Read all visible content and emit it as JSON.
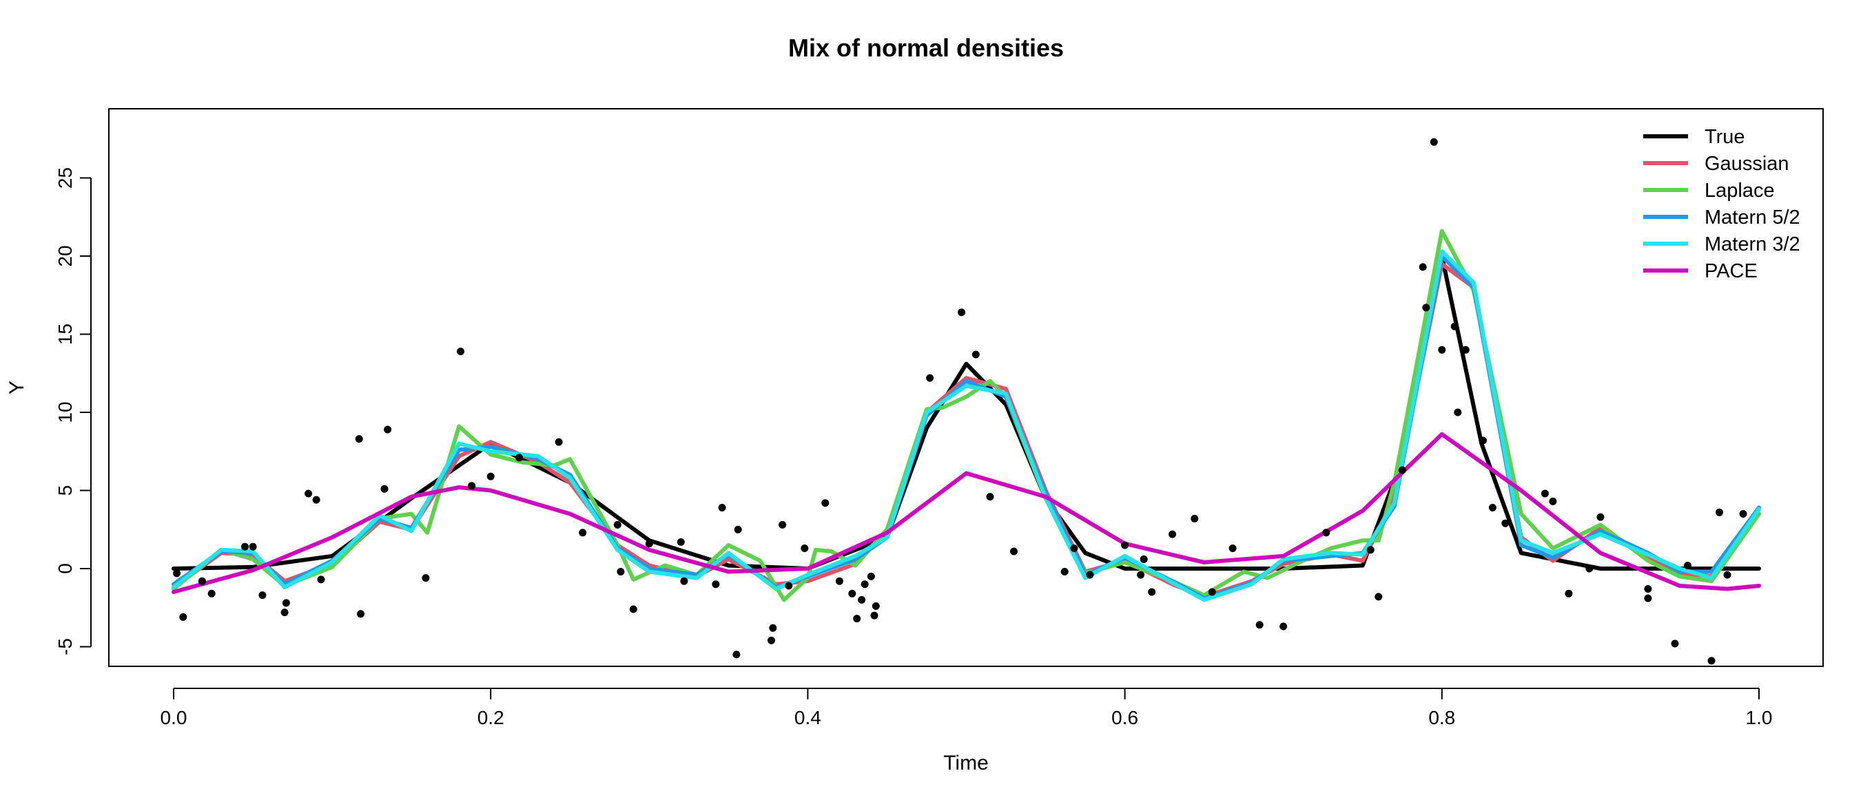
{
  "chart_data": {
    "type": "line",
    "title": "Mix of normal densities",
    "xlabel": "Time",
    "ylabel": "Y",
    "xlim": [
      0.0,
      1.0
    ],
    "ylim": [
      -5,
      27
    ],
    "x_ticks": [
      "0.0",
      "0.2",
      "0.4",
      "0.6",
      "0.8",
      "1.0"
    ],
    "y_ticks": [
      "-5",
      "0",
      "5",
      "10",
      "15",
      "20",
      "25"
    ],
    "legend_position": "top-right",
    "series": [
      {
        "name": "True",
        "color": "#000000",
        "x": [
          0,
          0.05,
          0.1,
          0.15,
          0.2,
          0.25,
          0.3,
          0.35,
          0.4,
          0.45,
          0.475,
          0.5,
          0.525,
          0.55,
          0.575,
          0.6,
          0.65,
          0.7,
          0.75,
          0.775,
          0.8,
          0.825,
          0.85,
          0.9,
          1.0
        ],
        "y": [
          0,
          0.1,
          0.8,
          4.5,
          8.0,
          5.5,
          1.8,
          0.2,
          0,
          2.0,
          9.0,
          13.1,
          10.5,
          4.5,
          1.0,
          0,
          0,
          0,
          0.2,
          7.0,
          20.0,
          8.0,
          1.0,
          0,
          0
        ]
      },
      {
        "name": "Gaussian",
        "color": "#df536b",
        "x": [
          0,
          0.03,
          0.05,
          0.07,
          0.1,
          0.13,
          0.15,
          0.18,
          0.2,
          0.23,
          0.25,
          0.28,
          0.3,
          0.33,
          0.35,
          0.38,
          0.4,
          0.43,
          0.45,
          0.475,
          0.5,
          0.525,
          0.55,
          0.575,
          0.6,
          0.63,
          0.65,
          0.68,
          0.7,
          0.73,
          0.75,
          0.77,
          0.8,
          0.82,
          0.85,
          0.87,
          0.9,
          0.93,
          0.95,
          0.97,
          1.0
        ],
        "y": [
          -1.2,
          1.0,
          0.9,
          -0.8,
          0.3,
          3.0,
          2.5,
          7.2,
          8.1,
          6.8,
          5.5,
          1.5,
          0.2,
          -0.5,
          0.6,
          -1.0,
          -0.8,
          0.3,
          2.5,
          10.0,
          12.2,
          11.5,
          5.0,
          -0.2,
          0.5,
          -1.0,
          -1.8,
          -0.8,
          0.3,
          0.9,
          0.5,
          4.5,
          19.5,
          18.0,
          2.0,
          0.5,
          2.6,
          0.8,
          -0.3,
          -0.5,
          3.9
        ]
      },
      {
        "name": "Laplace",
        "color": "#61d04f",
        "x": [
          0,
          0.03,
          0.05,
          0.07,
          0.1,
          0.13,
          0.15,
          0.16,
          0.18,
          0.2,
          0.22,
          0.24,
          0.25,
          0.28,
          0.29,
          0.31,
          0.33,
          0.35,
          0.37,
          0.385,
          0.4,
          0.405,
          0.415,
          0.43,
          0.45,
          0.475,
          0.485,
          0.5,
          0.515,
          0.525,
          0.55,
          0.575,
          0.6,
          0.63,
          0.65,
          0.675,
          0.69,
          0.71,
          0.73,
          0.75,
          0.76,
          0.77,
          0.8,
          0.82,
          0.85,
          0.87,
          0.9,
          0.93,
          0.95,
          0.97,
          1.0
        ],
        "y": [
          -1.3,
          1.2,
          0.6,
          -1.1,
          0.1,
          3.2,
          3.5,
          2.3,
          9.1,
          7.3,
          6.8,
          6.6,
          7.0,
          1.5,
          -0.7,
          0.2,
          -0.4,
          1.5,
          0.5,
          -2.0,
          -0.6,
          1.2,
          1.1,
          0.2,
          2.5,
          10.2,
          10.3,
          11.0,
          12.0,
          11.0,
          4.5,
          -0.3,
          0.4,
          -0.8,
          -1.7,
          -0.2,
          -0.6,
          0.4,
          1.3,
          1.8,
          1.8,
          5.5,
          21.6,
          17.8,
          3.5,
          1.3,
          2.8,
          0.5,
          -0.5,
          -0.8,
          3.5
        ]
      },
      {
        "name": "Matern 5/2",
        "color": "#2297e6",
        "x": [
          0,
          0.03,
          0.05,
          0.07,
          0.1,
          0.13,
          0.15,
          0.18,
          0.2,
          0.23,
          0.25,
          0.28,
          0.3,
          0.33,
          0.35,
          0.38,
          0.4,
          0.43,
          0.45,
          0.475,
          0.5,
          0.525,
          0.55,
          0.575,
          0.6,
          0.63,
          0.65,
          0.68,
          0.7,
          0.73,
          0.75,
          0.77,
          0.8,
          0.82,
          0.85,
          0.87,
          0.9,
          0.93,
          0.95,
          0.97,
          1.0
        ],
        "y": [
          -1.0,
          1.1,
          1.0,
          -1.0,
          0.5,
          3.2,
          2.6,
          7.6,
          7.8,
          7.0,
          6.0,
          1.3,
          0.0,
          -0.4,
          0.9,
          -1.2,
          -0.5,
          0.6,
          2.0,
          9.8,
          12.0,
          11.0,
          4.8,
          -0.4,
          0.7,
          -0.8,
          -1.9,
          -0.9,
          0.5,
          0.8,
          1.0,
          4.0,
          20.0,
          18.0,
          1.5,
          0.7,
          2.4,
          1.0,
          -0.2,
          -0.2,
          3.9
        ]
      },
      {
        "name": "Matern 3/2",
        "color": "#28e2e5",
        "x": [
          0,
          0.03,
          0.05,
          0.07,
          0.1,
          0.13,
          0.15,
          0.18,
          0.2,
          0.23,
          0.25,
          0.28,
          0.3,
          0.33,
          0.35,
          0.38,
          0.4,
          0.43,
          0.45,
          0.475,
          0.5,
          0.525,
          0.55,
          0.575,
          0.6,
          0.63,
          0.65,
          0.68,
          0.7,
          0.73,
          0.75,
          0.77,
          0.8,
          0.82,
          0.85,
          0.87,
          0.9,
          0.93,
          0.95,
          0.97,
          1.0
        ],
        "y": [
          -1.2,
          1.2,
          1.1,
          -1.2,
          0.4,
          3.4,
          2.4,
          8.0,
          7.5,
          7.2,
          5.8,
          1.2,
          -0.2,
          -0.6,
          1.0,
          -1.3,
          -0.4,
          0.8,
          2.0,
          10.0,
          11.7,
          11.2,
          4.5,
          -0.6,
          0.8,
          -0.9,
          -2.0,
          -1.0,
          0.6,
          1.0,
          0.9,
          4.2,
          20.3,
          18.3,
          1.8,
          1.0,
          2.2,
          0.9,
          0.0,
          -0.6,
          3.8
        ]
      },
      {
        "name": "PACE",
        "color": "#cd0bbc",
        "x": [
          0,
          0.05,
          0.1,
          0.15,
          0.18,
          0.2,
          0.25,
          0.3,
          0.35,
          0.4,
          0.45,
          0.5,
          0.55,
          0.6,
          0.65,
          0.7,
          0.75,
          0.8,
          0.85,
          0.9,
          0.95,
          0.98,
          1.0
        ],
        "y": [
          -1.5,
          -0.1,
          2.0,
          4.6,
          5.2,
          5.0,
          3.5,
          1.2,
          -0.2,
          0.0,
          2.3,
          6.1,
          4.6,
          1.6,
          0.4,
          0.8,
          3.7,
          8.6,
          5.0,
          1.0,
          -1.1,
          -1.3,
          -1.1
        ]
      }
    ],
    "scatter_points": {
      "x": [
        0.002,
        0.006,
        0.018,
        0.024,
        0.045,
        0.05,
        0.056,
        0.07,
        0.071,
        0.085,
        0.09,
        0.093,
        0.117,
        0.118,
        0.133,
        0.135,
        0.159,
        0.181,
        0.188,
        0.2,
        0.218,
        0.243,
        0.258,
        0.28,
        0.282,
        0.29,
        0.3,
        0.32,
        0.322,
        0.342,
        0.346,
        0.355,
        0.356,
        0.377,
        0.378,
        0.384,
        0.388,
        0.398,
        0.411,
        0.42,
        0.428,
        0.431,
        0.434,
        0.436,
        0.44,
        0.442,
        0.443,
        0.477,
        0.497,
        0.506,
        0.515,
        0.53,
        0.562,
        0.568,
        0.578,
        0.6,
        0.61,
        0.612,
        0.617,
        0.63,
        0.644,
        0.655,
        0.668,
        0.685,
        0.7,
        0.727,
        0.755,
        0.76,
        0.775,
        0.788,
        0.79,
        0.795,
        0.8,
        0.808,
        0.81,
        0.815,
        0.826,
        0.832,
        0.84,
        0.865,
        0.87,
        0.88,
        0.893,
        0.9,
        0.93,
        0.93,
        0.947,
        0.955,
        0.97,
        0.975,
        0.98,
        0.99
      ],
      "y": [
        -0.3,
        -3.1,
        -0.8,
        -1.6,
        1.4,
        1.4,
        -1.7,
        -2.8,
        -2.2,
        4.8,
        4.4,
        -0.7,
        8.3,
        -2.9,
        5.1,
        8.9,
        -0.6,
        13.9,
        5.3,
        5.9,
        7.1,
        8.1,
        2.3,
        2.8,
        -0.2,
        -2.6,
        1.6,
        1.7,
        -0.8,
        -1.0,
        3.9,
        -5.5,
        2.5,
        -4.6,
        -3.8,
        2.8,
        -1.1,
        1.3,
        4.2,
        -0.8,
        -1.6,
        -3.2,
        -2.0,
        -1.0,
        -0.5,
        -3.0,
        -2.4,
        12.2,
        16.4,
        13.7,
        4.6,
        1.1,
        -0.2,
        1.3,
        -0.4,
        1.5,
        -0.4,
        0.6,
        -1.5,
        2.2,
        3.2,
        -1.5,
        1.3,
        -3.6,
        -3.7,
        2.3,
        1.2,
        -1.8,
        6.3,
        19.3,
        16.7,
        27.3,
        14.0,
        15.5,
        10.0,
        14.0,
        8.2,
        3.9,
        2.9,
        4.8,
        4.3,
        -1.6,
        0.0,
        3.3,
        -1.3,
        -1.9,
        -4.8,
        0.2,
        -5.9,
        3.6,
        -0.4,
        3.5
      ]
    }
  }
}
